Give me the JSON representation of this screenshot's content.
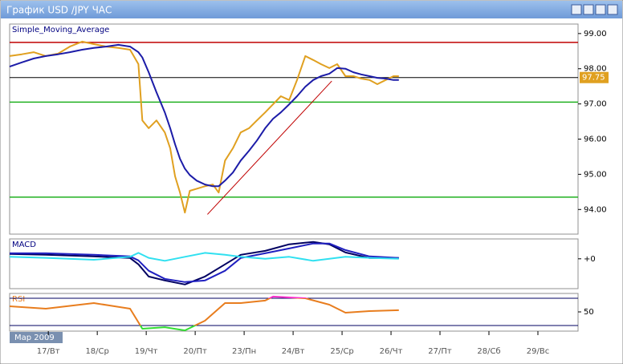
{
  "window": {
    "title": "График USD /JPY  ЧАС"
  },
  "chart_data": [
    {
      "type": "line",
      "title": "Simple_Moving_Average",
      "x": [
        -0.79,
        -0.54,
        -0.3,
        -0.05,
        0.2,
        0.44,
        0.69,
        0.93,
        1.18,
        1.43,
        1.67,
        1.84,
        1.92,
        2.05,
        2.21,
        2.38,
        2.49,
        2.59,
        2.69,
        2.79,
        2.89,
        3.03,
        3.2,
        3.36,
        3.48,
        3.61,
        3.77,
        3.93,
        4.1,
        4.26,
        4.43,
        4.59,
        4.75,
        4.92,
        5.08,
        5.25,
        5.41,
        5.57,
        5.74,
        5.9,
        6.07,
        6.23,
        6.39,
        6.56,
        6.72,
        6.89,
        7.05,
        7.16
      ],
      "series": [
        {
          "color": "#e0a020",
          "values": [
            98.36,
            98.41,
            98.47,
            98.36,
            98.43,
            98.63,
            98.77,
            98.7,
            98.63,
            98.59,
            98.54,
            98.13,
            96.53,
            96.31,
            96.53,
            96.19,
            95.74,
            94.94,
            94.48,
            93.91,
            94.53,
            94.59,
            94.66,
            94.71,
            94.48,
            95.39,
            95.74,
            96.19,
            96.31,
            96.53,
            96.76,
            96.99,
            97.22,
            97.11,
            97.68,
            98.36,
            98.25,
            98.13,
            98.02,
            98.13,
            97.79,
            97.79,
            97.72,
            97.68,
            97.56,
            97.68,
            97.79,
            97.79
          ]
        },
        {
          "color": "#1c1ca8",
          "values": [
            98.06,
            98.18,
            98.29,
            98.36,
            98.41,
            98.47,
            98.54,
            98.59,
            98.63,
            98.68,
            98.63,
            98.47,
            98.32,
            97.9,
            97.33,
            96.76,
            96.31,
            95.85,
            95.44,
            95.16,
            94.98,
            94.82,
            94.71,
            94.66,
            94.66,
            94.82,
            95.05,
            95.39,
            95.67,
            95.96,
            96.31,
            96.58,
            96.76,
            96.99,
            97.22,
            97.49,
            97.68,
            97.79,
            97.86,
            98.02,
            98.0,
            97.9,
            97.84,
            97.79,
            97.74,
            97.72,
            97.68,
            97.68
          ]
        }
      ],
      "levels": [
        {
          "value": 98.75,
          "color": "#c00000"
        },
        {
          "value": 97.05,
          "color": "#20b020"
        },
        {
          "value": 94.35,
          "color": "#20b020"
        }
      ],
      "trendline": {
        "x": [
          3.25,
          5.79
        ],
        "y": [
          93.86,
          97.65
        ],
        "color": "#c00000"
      },
      "last_price": 97.75,
      "last_color": "#e0a020",
      "xlim": [
        -0.79,
        10.82
      ],
      "ylim": [
        93.3,
        99.27
      ],
      "yticks": [
        {
          "value": 94,
          "label": "94.00"
        },
        {
          "value": 95,
          "label": "95.00"
        },
        {
          "value": 96,
          "label": "96.00"
        },
        {
          "value": 97,
          "label": "97.00"
        },
        {
          "value": 98,
          "label": "98.00"
        },
        {
          "value": 99,
          "label": "99.00"
        }
      ],
      "xticks": [
        {
          "value": 0,
          "label": "17/Вт"
        },
        {
          "value": 1,
          "label": "18/Ср"
        },
        {
          "value": 2,
          "label": "19/Чт"
        },
        {
          "value": 3,
          "label": "20/Пт"
        },
        {
          "value": 4,
          "label": "23/Пн"
        },
        {
          "value": 5,
          "label": "24/Вт"
        },
        {
          "value": 6,
          "label": "25/Ср"
        },
        {
          "value": 7,
          "label": "26/Чт"
        },
        {
          "value": 8,
          "label": "27/Пт"
        },
        {
          "value": 9,
          "label": "28/Сб"
        },
        {
          "value": 10,
          "label": "29/Вс"
        }
      ],
      "period_label": "Мар 2009"
    },
    {
      "type": "line",
      "title": "MACD",
      "x": [
        -0.79,
        -0.05,
        0.93,
        1.67,
        1.84,
        2.05,
        2.38,
        2.79,
        3.2,
        3.61,
        3.93,
        4.43,
        4.92,
        5.41,
        5.74,
        6.07,
        6.56,
        7.16
      ],
      "series": [
        {
          "color": "#000060",
          "values": [
            0.24,
            0.2,
            0.12,
            0.04,
            -0.28,
            -0.89,
            -1.09,
            -1.29,
            -0.89,
            -0.28,
            0.2,
            0.4,
            0.73,
            0.85,
            0.73,
            0.32,
            0.04,
            0.04
          ]
        },
        {
          "color": "#2020c0",
          "values": [
            0.28,
            0.28,
            0.2,
            0.12,
            -0.08,
            -0.6,
            -1.01,
            -1.17,
            -1.09,
            -0.6,
            0.04,
            0.28,
            0.52,
            0.77,
            0.77,
            0.44,
            0.12,
            0.04
          ]
        },
        {
          "color": "#30e0f0",
          "values": [
            0.1,
            0.05,
            -0.05,
            0.1,
            0.3,
            0.05,
            -0.1,
            0.1,
            0.3,
            0.2,
            0.1,
            0.0,
            0.1,
            -0.1,
            0.0,
            0.1,
            0.05,
            0.0
          ]
        }
      ],
      "xlim": [
        -0.79,
        10.82
      ],
      "ylim": [
        -1.5,
        1.0
      ],
      "yticks": [
        {
          "value": 0,
          "label": "+0"
        }
      ]
    },
    {
      "type": "line",
      "title": "RSI",
      "x": [
        -0.79,
        -0.05,
        0.93,
        1.67,
        1.92,
        2.38,
        2.79,
        3.2,
        3.61,
        3.93,
        4.43,
        4.59,
        5.25,
        5.74,
        6.07,
        6.56,
        7.16
      ],
      "series": [
        {
          "color": "#e87d1e",
          "values": [
            58.2,
            54.7,
            62.9,
            54.7,
            25.3,
            27.6,
            22.9,
            37.1,
            62.9,
            62.9,
            66.5,
            72.4,
            70,
            60.6,
            48.8,
            51.2,
            52.4
          ]
        }
      ],
      "levels": [
        30,
        70
      ],
      "low_color": "#33dd33",
      "high_color": "#ff33cc",
      "xlim": [
        -0.79,
        10.82
      ],
      "ylim": [
        21.8,
        77
      ],
      "yticks": [
        50
      ]
    }
  ]
}
